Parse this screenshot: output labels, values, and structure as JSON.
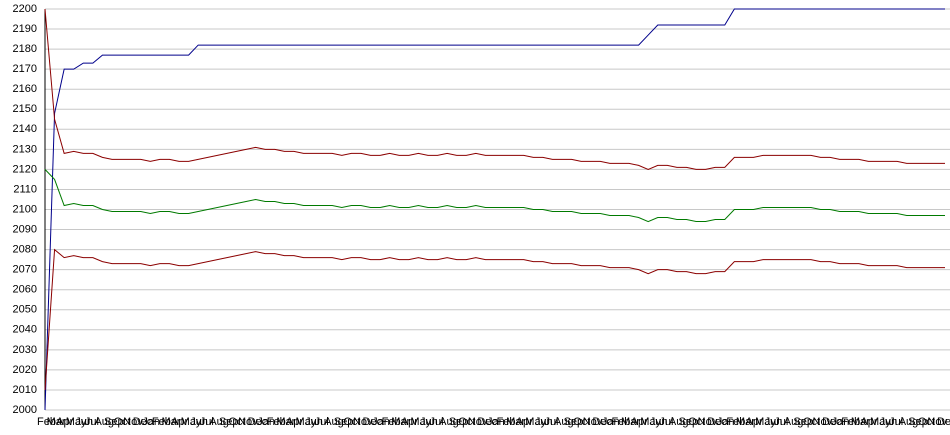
{
  "chart_data": {
    "type": "line",
    "categories": [
      "Feb",
      "Mar",
      "Apr",
      "May",
      "Jun",
      "Jul",
      "Aug",
      "Sep",
      "Oct",
      "Nov",
      "Dec",
      "Jan",
      "Feb",
      "Mar",
      "Apr",
      "May",
      "Jun",
      "Jul",
      "Aug",
      "Sep",
      "Oct",
      "Nov",
      "Dec",
      "Jan",
      "Feb",
      "Mar",
      "Apr",
      "May",
      "Jun",
      "Jul",
      "Aug",
      "Sep",
      "Oct",
      "Nov",
      "Dec",
      "Jan",
      "Feb",
      "Mar",
      "Apr",
      "May",
      "Jun",
      "Jul",
      "Aug",
      "Sep",
      "Oct",
      "Nov",
      "Dec",
      "Jan",
      "Feb",
      "Mar",
      "Apr",
      "May",
      "Jun",
      "Jul",
      "Aug",
      "Sep",
      "Oct",
      "Nov",
      "Dec",
      "Jan",
      "Feb",
      "Mar",
      "Apr",
      "May",
      "Jun",
      "Jul",
      "Aug",
      "Sep",
      "Oct",
      "Nov",
      "Dec",
      "Jan",
      "Feb",
      "Mar",
      "Apr",
      "May",
      "Jun",
      "Jul",
      "Aug",
      "Sep",
      "Oct",
      "Nov",
      "Dec",
      "Jan",
      "Feb",
      "Mar",
      "Apr",
      "May",
      "Jun",
      "Jul",
      "Aug",
      "Sep",
      "Oct",
      "Nov",
      "Dec"
    ],
    "series": [
      {
        "color": "#00008b",
        "values": [
          2000,
          2148,
          2170,
          2170,
          2173,
          2173,
          2177,
          2177,
          2177,
          2177,
          2177,
          2177,
          2177,
          2177,
          2177,
          2177,
          2182,
          2182,
          2182,
          2182,
          2182,
          2182,
          2182,
          2182,
          2182,
          2182,
          2182,
          2182,
          2182,
          2182,
          2182,
          2182,
          2182,
          2182,
          2182,
          2182,
          2182,
          2182,
          2182,
          2182,
          2182,
          2182,
          2182,
          2182,
          2182,
          2182,
          2182,
          2182,
          2182,
          2182,
          2182,
          2182,
          2182,
          2182,
          2182,
          2182,
          2182,
          2182,
          2182,
          2182,
          2182,
          2182,
          2182,
          2187,
          2192,
          2192,
          2192,
          2192,
          2192,
          2192,
          2192,
          2192,
          2200,
          2200,
          2200,
          2200,
          2200,
          2200,
          2200,
          2200,
          2200,
          2200,
          2200,
          2200,
          2200,
          2200,
          2200,
          2200,
          2200,
          2200,
          2200,
          2200,
          2200,
          2200,
          2200
        ]
      },
      {
        "color": "#8b0000",
        "values": [
          2200,
          2145,
          2128,
          2129,
          2128,
          2128,
          2126,
          2125,
          2125,
          2125,
          2125,
          2124,
          2125,
          2125,
          2124,
          2124,
          2125,
          2126,
          2127,
          2128,
          2129,
          2130,
          2131,
          2130,
          2130,
          2129,
          2129,
          2128,
          2128,
          2128,
          2128,
          2127,
          2128,
          2128,
          2127,
          2127,
          2128,
          2127,
          2127,
          2128,
          2127,
          2127,
          2128,
          2127,
          2127,
          2128,
          2127,
          2127,
          2127,
          2127,
          2127,
          2126,
          2126,
          2125,
          2125,
          2125,
          2124,
          2124,
          2124,
          2123,
          2123,
          2123,
          2122,
          2120,
          2122,
          2122,
          2121,
          2121,
          2120,
          2120,
          2121,
          2121,
          2126,
          2126,
          2126,
          2127,
          2127,
          2127,
          2127,
          2127,
          2127,
          2126,
          2126,
          2125,
          2125,
          2125,
          2124,
          2124,
          2124,
          2124,
          2123,
          2123,
          2123,
          2123,
          2123
        ]
      },
      {
        "color": "#007a00",
        "values": [
          2120,
          2115,
          2102,
          2103,
          2102,
          2102,
          2100,
          2099,
          2099,
          2099,
          2099,
          2098,
          2099,
          2099,
          2098,
          2098,
          2099,
          2100,
          2101,
          2102,
          2103,
          2104,
          2105,
          2104,
          2104,
          2103,
          2103,
          2102,
          2102,
          2102,
          2102,
          2101,
          2102,
          2102,
          2101,
          2101,
          2102,
          2101,
          2101,
          2102,
          2101,
          2101,
          2102,
          2101,
          2101,
          2102,
          2101,
          2101,
          2101,
          2101,
          2101,
          2100,
          2100,
          2099,
          2099,
          2099,
          2098,
          2098,
          2098,
          2097,
          2097,
          2097,
          2096,
          2094,
          2096,
          2096,
          2095,
          2095,
          2094,
          2094,
          2095,
          2095,
          2100,
          2100,
          2100,
          2101,
          2101,
          2101,
          2101,
          2101,
          2101,
          2100,
          2100,
          2099,
          2099,
          2099,
          2098,
          2098,
          2098,
          2098,
          2097,
          2097,
          2097,
          2097,
          2097
        ]
      },
      {
        "color": "#8b0000",
        "values": [
          2010,
          2080,
          2076,
          2077,
          2076,
          2076,
          2074,
          2073,
          2073,
          2073,
          2073,
          2072,
          2073,
          2073,
          2072,
          2072,
          2073,
          2074,
          2075,
          2076,
          2077,
          2078,
          2079,
          2078,
          2078,
          2077,
          2077,
          2076,
          2076,
          2076,
          2076,
          2075,
          2076,
          2076,
          2075,
          2075,
          2076,
          2075,
          2075,
          2076,
          2075,
          2075,
          2076,
          2075,
          2075,
          2076,
          2075,
          2075,
          2075,
          2075,
          2075,
          2074,
          2074,
          2073,
          2073,
          2073,
          2072,
          2072,
          2072,
          2071,
          2071,
          2071,
          2070,
          2068,
          2070,
          2070,
          2069,
          2069,
          2068,
          2068,
          2069,
          2069,
          2074,
          2074,
          2074,
          2075,
          2075,
          2075,
          2075,
          2075,
          2075,
          2074,
          2074,
          2073,
          2073,
          2073,
          2072,
          2072,
          2072,
          2072,
          2071,
          2071,
          2071,
          2071,
          2071
        ]
      }
    ],
    "ylim": [
      2000,
      2200
    ],
    "yticks": [
      2000,
      2010,
      2020,
      2030,
      2040,
      2050,
      2060,
      2070,
      2080,
      2090,
      2100,
      2110,
      2120,
      2130,
      2140,
      2150,
      2160,
      2170,
      2180,
      2190,
      2200
    ],
    "grid": true
  }
}
